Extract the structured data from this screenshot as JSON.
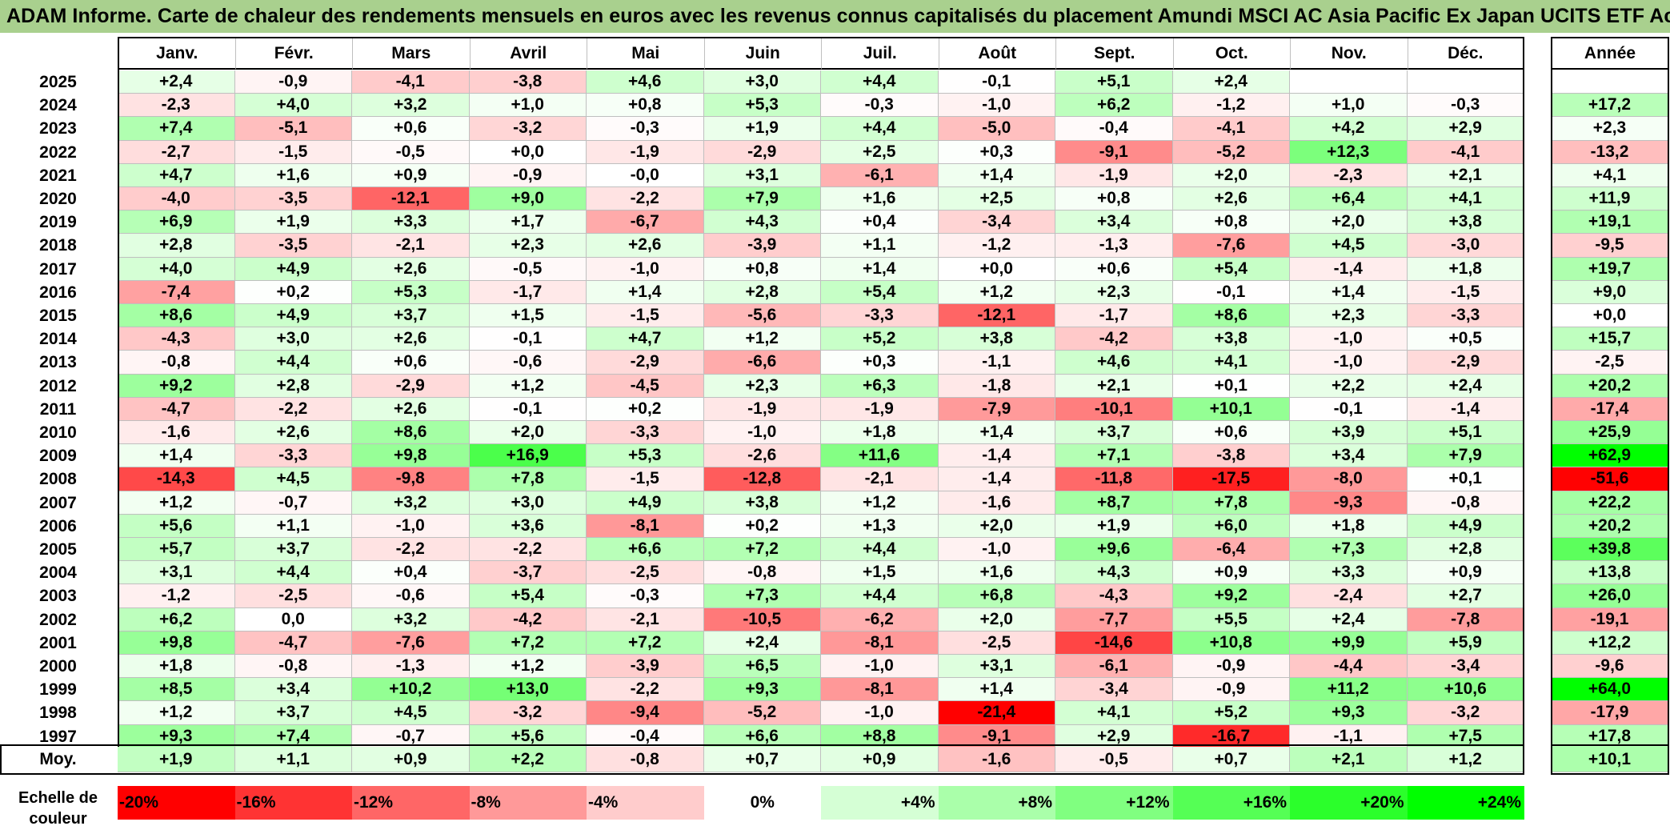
{
  "title": "ADAM Informe. Carte de chaleur des rendements mensuels en euros avec les revenus connus capitalisés du placement Amundi MSCI AC Asia Pacific Ex Japan UCITS ETF Acc",
  "scale_label": "Echelle de couleur",
  "colors": {
    "title_bg": "#a9d08e",
    "negative_max": "#ff0000",
    "zero": "#ffffff",
    "positive_max": "#00ff00"
  },
  "chart_data": {
    "type": "heatmap",
    "title": "ADAM Informe. Carte de chaleur des rendements mensuels en euros avec les revenus connus capitalisés du placement Amundi MSCI AC Asia Pacific Ex Japan UCITS ETF Acc",
    "columns": [
      "Janv.",
      "Févr.",
      "Mars",
      "Avril",
      "Mai",
      "Juin",
      "Juil.",
      "Août",
      "Sept.",
      "Oct.",
      "Nov.",
      "Déc."
    ],
    "year_label": "Année",
    "color_range": [
      -20,
      24
    ],
    "rows": [
      {
        "label": "2025",
        "values": [
          "+2,4",
          "-0,9",
          "-4,1",
          "-3,8",
          "+4,6",
          "+3,0",
          "+4,4",
          "-0,1",
          "+5,1",
          "+2,4",
          "",
          ""
        ],
        "year": ""
      },
      {
        "label": "2024",
        "values": [
          "-2,3",
          "+4,0",
          "+3,2",
          "+1,0",
          "+0,8",
          "+5,3",
          "-0,3",
          "-1,0",
          "+6,2",
          "-1,2",
          "+1,0",
          "-0,3"
        ],
        "year": "+17,2"
      },
      {
        "label": "2023",
        "values": [
          "+7,4",
          "-5,1",
          "+0,6",
          "-3,2",
          "-0,3",
          "+1,9",
          "+4,4",
          "-5,0",
          "-0,4",
          "-4,1",
          "+4,2",
          "+2,9"
        ],
        "year": "+2,3"
      },
      {
        "label": "2022",
        "values": [
          "-2,7",
          "-1,5",
          "-0,5",
          "+0,0",
          "-1,9",
          "-2,9",
          "+2,5",
          "+0,3",
          "-9,1",
          "-5,2",
          "+12,3",
          "-4,1"
        ],
        "year": "-13,2"
      },
      {
        "label": "2021",
        "values": [
          "+4,7",
          "+1,6",
          "+0,9",
          "-0,9",
          "-0,0",
          "+3,1",
          "-6,1",
          "+1,4",
          "-1,9",
          "+2,0",
          "-2,3",
          "+2,1"
        ],
        "year": "+4,1"
      },
      {
        "label": "2020",
        "values": [
          "-4,0",
          "-3,5",
          "-12,1",
          "+9,0",
          "-2,2",
          "+7,9",
          "+1,6",
          "+2,5",
          "+0,8",
          "+2,6",
          "+6,4",
          "+4,1"
        ],
        "year": "+11,9"
      },
      {
        "label": "2019",
        "values": [
          "+6,9",
          "+1,9",
          "+3,3",
          "+1,7",
          "-6,7",
          "+4,3",
          "+0,4",
          "-3,4",
          "+3,4",
          "+0,8",
          "+2,0",
          "+3,8"
        ],
        "year": "+19,1"
      },
      {
        "label": "2018",
        "values": [
          "+2,8",
          "-3,5",
          "-2,1",
          "+2,3",
          "+2,6",
          "-3,9",
          "+1,1",
          "-1,2",
          "-1,3",
          "-7,6",
          "+4,5",
          "-3,0"
        ],
        "year": "-9,5"
      },
      {
        "label": "2017",
        "values": [
          "+4,0",
          "+4,9",
          "+2,6",
          "-0,5",
          "-1,0",
          "+0,8",
          "+1,4",
          "+0,0",
          "+0,6",
          "+5,4",
          "-1,4",
          "+1,8"
        ],
        "year": "+19,7"
      },
      {
        "label": "2016",
        "values": [
          "-7,4",
          "+0,2",
          "+5,3",
          "-1,7",
          "+1,4",
          "+2,8",
          "+5,4",
          "+1,2",
          "+2,3",
          "-0,1",
          "+1,4",
          "-1,5"
        ],
        "year": "+9,0"
      },
      {
        "label": "2015",
        "values": [
          "+8,6",
          "+4,9",
          "+3,7",
          "+1,5",
          "-1,5",
          "-5,6",
          "-3,3",
          "-12,1",
          "-1,7",
          "+8,6",
          "+2,3",
          "-3,3"
        ],
        "year": "+0,0"
      },
      {
        "label": "2014",
        "values": [
          "-4,3",
          "+3,0",
          "+2,6",
          "-0,1",
          "+4,7",
          "+1,2",
          "+5,2",
          "+3,8",
          "-4,2",
          "+3,8",
          "-1,0",
          "+0,5"
        ],
        "year": "+15,7"
      },
      {
        "label": "2013",
        "values": [
          "-0,8",
          "+4,4",
          "+0,6",
          "-0,6",
          "-2,9",
          "-6,6",
          "+0,3",
          "-1,1",
          "+4,6",
          "+4,1",
          "-1,0",
          "-2,9"
        ],
        "year": "-2,5"
      },
      {
        "label": "2012",
        "values": [
          "+9,2",
          "+2,8",
          "-2,9",
          "+1,2",
          "-4,5",
          "+2,3",
          "+6,3",
          "-1,8",
          "+2,1",
          "+0,1",
          "+2,2",
          "+2,4"
        ],
        "year": "+20,2"
      },
      {
        "label": "2011",
        "values": [
          "-4,7",
          "-2,2",
          "+2,6",
          "-0,1",
          "+0,2",
          "-1,9",
          "-1,9",
          "-7,9",
          "-10,1",
          "+10,1",
          "-0,1",
          "-1,4"
        ],
        "year": "-17,4"
      },
      {
        "label": "2010",
        "values": [
          "-1,6",
          "+2,6",
          "+8,6",
          "+2,0",
          "-3,3",
          "-1,0",
          "+1,8",
          "+1,4",
          "+3,7",
          "+0,6",
          "+3,9",
          "+5,1"
        ],
        "year": "+25,9"
      },
      {
        "label": "2009",
        "values": [
          "+1,4",
          "-3,3",
          "+9,8",
          "+16,9",
          "+5,3",
          "-2,6",
          "+11,6",
          "-1,4",
          "+7,1",
          "-3,8",
          "+3,4",
          "+7,9"
        ],
        "year": "+62,9"
      },
      {
        "label": "2008",
        "values": [
          "-14,3",
          "+4,5",
          "-9,8",
          "+7,8",
          "-1,5",
          "-12,8",
          "-2,1",
          "-1,4",
          "-11,8",
          "-17,5",
          "-8,0",
          "+0,1"
        ],
        "year": "-51,6"
      },
      {
        "label": "2007",
        "values": [
          "+1,2",
          "-0,7",
          "+3,2",
          "+3,0",
          "+4,9",
          "+3,8",
          "+1,2",
          "-1,6",
          "+8,7",
          "+7,8",
          "-9,3",
          "-0,8"
        ],
        "year": "+22,2"
      },
      {
        "label": "2006",
        "values": [
          "+5,6",
          "+1,1",
          "-1,0",
          "+3,6",
          "-8,1",
          "+0,2",
          "+1,3",
          "+2,0",
          "+1,9",
          "+6,0",
          "+1,8",
          "+4,9"
        ],
        "year": "+20,2"
      },
      {
        "label": "2005",
        "values": [
          "+5,7",
          "+3,7",
          "-2,2",
          "-2,2",
          "+6,6",
          "+7,2",
          "+4,4",
          "-1,0",
          "+9,6",
          "-6,4",
          "+7,3",
          "+2,8"
        ],
        "year": "+39,8"
      },
      {
        "label": "2004",
        "values": [
          "+3,1",
          "+4,4",
          "+0,4",
          "-3,7",
          "-2,5",
          "-0,8",
          "+1,5",
          "+1,6",
          "+4,3",
          "+0,9",
          "+3,3",
          "+0,9"
        ],
        "year": "+13,8"
      },
      {
        "label": "2003",
        "values": [
          "-1,2",
          "-2,5",
          "-0,6",
          "+5,4",
          "-0,3",
          "+7,3",
          "+4,4",
          "+6,8",
          "-4,3",
          "+9,2",
          "-2,4",
          "+2,7"
        ],
        "year": "+26,0"
      },
      {
        "label": "2002",
        "values": [
          "+6,2",
          "0,0",
          "+3,2",
          "-4,2",
          "-2,1",
          "-10,5",
          "-6,2",
          "+2,0",
          "-7,7",
          "+5,5",
          "+2,4",
          "-7,8"
        ],
        "year": "-19,1"
      },
      {
        "label": "2001",
        "values": [
          "+9,8",
          "-4,7",
          "-7,6",
          "+7,2",
          "+7,2",
          "+2,4",
          "-8,1",
          "-2,5",
          "-14,6",
          "+10,8",
          "+9,9",
          "+5,9"
        ],
        "year": "+12,2"
      },
      {
        "label": "2000",
        "values": [
          "+1,8",
          "-0,8",
          "-1,3",
          "+1,2",
          "-3,9",
          "+6,5",
          "-1,0",
          "+3,1",
          "-6,1",
          "-0,9",
          "-4,4",
          "-3,4"
        ],
        "year": "-9,6"
      },
      {
        "label": "1999",
        "values": [
          "+8,5",
          "+3,4",
          "+10,2",
          "+13,0",
          "-2,2",
          "+9,3",
          "-8,1",
          "+1,4",
          "-3,4",
          "-0,9",
          "+11,2",
          "+10,6"
        ],
        "year": "+64,0"
      },
      {
        "label": "1998",
        "values": [
          "+1,2",
          "+3,7",
          "+4,5",
          "-3,2",
          "-9,4",
          "-5,2",
          "-1,0",
          "-21,4",
          "+4,1",
          "+5,2",
          "+9,3",
          "-3,2"
        ],
        "year": "-17,9"
      },
      {
        "label": "1997",
        "values": [
          "+9,3",
          "+7,4",
          "-0,7",
          "+5,6",
          "-0,4",
          "+6,6",
          "+8,8",
          "-9,1",
          "+2,9",
          "-16,7",
          "-1,1",
          "+7,5"
        ],
        "year": "+17,8"
      }
    ],
    "average": {
      "label": "Moy.",
      "values": [
        "+1,9",
        "+1,1",
        "+0,9",
        "+2,2",
        "-0,8",
        "+0,7",
        "+0,9",
        "-1,6",
        "-0,5",
        "+0,7",
        "+2,1",
        "+1,2"
      ],
      "year": "+10,1"
    },
    "scale": [
      "-20%",
      "-16%",
      "-12%",
      "-8%",
      "-4%",
      "0%",
      "+4%",
      "+8%",
      "+12%",
      "+16%",
      "+20%",
      "+24%"
    ]
  }
}
